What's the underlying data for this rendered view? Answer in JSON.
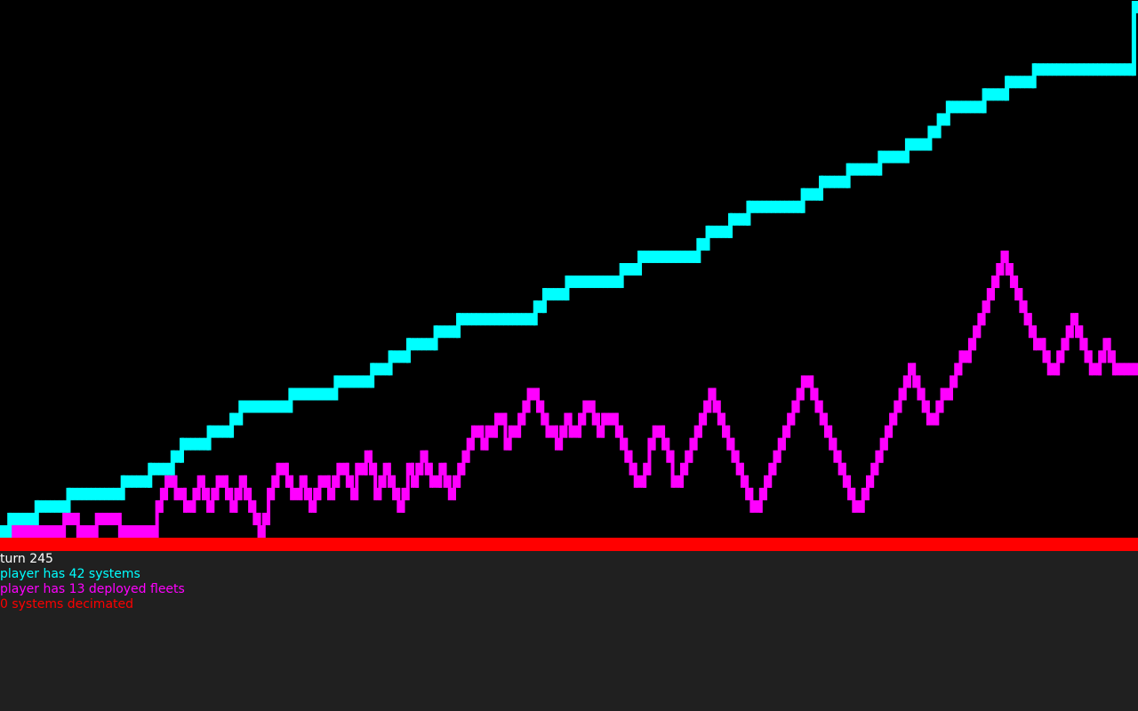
{
  "colors": {
    "background": "#000000",
    "panel": "#202020",
    "systems": "#00FFFF",
    "fleets": "#FF00FF",
    "decimated": "#FF0000",
    "text": "#FFFFFF"
  },
  "status": {
    "turn": "turn 245",
    "systems": "player has 42 systems",
    "fleets": "player has 13 deployed fleets",
    "decimated": "0 systems decimated"
  },
  "chart_data": {
    "type": "line",
    "x_range": [
      0,
      245
    ],
    "y_range": [
      0,
      42
    ],
    "series": [
      {
        "name": "systems",
        "color": "#00FFFF",
        "values": [
          0,
          0,
          1,
          1,
          1,
          1,
          1,
          1,
          2,
          2,
          2,
          2,
          2,
          2,
          2,
          3,
          3,
          3,
          3,
          3,
          3,
          3,
          3,
          3,
          3,
          3,
          3,
          4,
          4,
          4,
          4,
          4,
          4,
          5,
          5,
          5,
          5,
          5,
          6,
          6,
          7,
          7,
          7,
          7,
          7,
          7,
          8,
          8,
          8,
          8,
          8,
          9,
          9,
          10,
          10,
          10,
          10,
          10,
          10,
          10,
          10,
          10,
          10,
          10,
          11,
          11,
          11,
          11,
          11,
          11,
          11,
          11,
          11,
          11,
          12,
          12,
          12,
          12,
          12,
          12,
          12,
          12,
          13,
          13,
          13,
          13,
          14,
          14,
          14,
          14,
          15,
          15,
          15,
          15,
          15,
          15,
          16,
          16,
          16,
          16,
          16,
          17,
          17,
          17,
          17,
          17,
          17,
          17,
          17,
          17,
          17,
          17,
          17,
          17,
          17,
          17,
          17,
          17,
          18,
          18,
          19,
          19,
          19,
          19,
          19,
          20,
          20,
          20,
          20,
          20,
          20,
          20,
          20,
          20,
          20,
          20,
          20,
          21,
          21,
          21,
          21,
          22,
          22,
          22,
          22,
          22,
          22,
          22,
          22,
          22,
          22,
          22,
          22,
          22,
          23,
          23,
          24,
          24,
          24,
          24,
          24,
          25,
          25,
          25,
          25,
          26,
          26,
          26,
          26,
          26,
          26,
          26,
          26,
          26,
          26,
          26,
          26,
          27,
          27,
          27,
          27,
          28,
          28,
          28,
          28,
          28,
          28,
          29,
          29,
          29,
          29,
          29,
          29,
          29,
          30,
          30,
          30,
          30,
          30,
          30,
          31,
          31,
          31,
          31,
          31,
          32,
          32,
          33,
          33,
          34,
          34,
          34,
          34,
          34,
          34,
          34,
          34,
          35,
          35,
          35,
          35,
          35,
          36,
          36,
          36,
          36,
          36,
          36,
          37,
          37,
          37,
          37,
          37,
          37,
          37,
          37,
          37,
          37,
          37,
          37,
          37,
          37,
          37,
          37,
          37,
          37,
          37,
          37,
          37,
          37,
          42
        ]
      },
      {
        "name": "deployed fleets",
        "color": "#FF00FF",
        "values": [
          0,
          0,
          0,
          0,
          0,
          0,
          0,
          0,
          0,
          0,
          0,
          0,
          0,
          0,
          1,
          1,
          1,
          0,
          0,
          0,
          0,
          1,
          1,
          1,
          1,
          1,
          0,
          0,
          0,
          0,
          0,
          0,
          0,
          0,
          2,
          3,
          4,
          4,
          3,
          3,
          2,
          2,
          3,
          4,
          3,
          2,
          3,
          4,
          4,
          3,
          2,
          3,
          4,
          3,
          2,
          1,
          0,
          1,
          3,
          4,
          5,
          5,
          4,
          3,
          3,
          4,
          3,
          2,
          3,
          4,
          4,
          3,
          4,
          5,
          5,
          4,
          3,
          5,
          5,
          6,
          5,
          3,
          4,
          5,
          4,
          3,
          2,
          3,
          5,
          4,
          5,
          6,
          5,
          4,
          4,
          5,
          4,
          3,
          4,
          5,
          6,
          7,
          8,
          8,
          7,
          8,
          8,
          9,
          9,
          7,
          8,
          8,
          9,
          10,
          11,
          11,
          10,
          9,
          8,
          8,
          7,
          8,
          9,
          8,
          8,
          9,
          10,
          10,
          9,
          8,
          9,
          9,
          9,
          8,
          7,
          6,
          5,
          4,
          4,
          5,
          7,
          8,
          8,
          7,
          6,
          4,
          4,
          5,
          6,
          7,
          8,
          9,
          10,
          11,
          10,
          9,
          8,
          7,
          6,
          5,
          4,
          3,
          2,
          2,
          3,
          4,
          5,
          6,
          7,
          8,
          9,
          10,
          11,
          12,
          12,
          11,
          10,
          9,
          8,
          7,
          6,
          5,
          4,
          3,
          2,
          2,
          3,
          4,
          5,
          6,
          7,
          8,
          9,
          10,
          11,
          12,
          13,
          12,
          11,
          10,
          9,
          9,
          10,
          11,
          11,
          12,
          13,
          14,
          14,
          15,
          16,
          17,
          18,
          19,
          20,
          21,
          22,
          21,
          20,
          19,
          18,
          17,
          16,
          15,
          15,
          14,
          13,
          13,
          14,
          15,
          16,
          17,
          16,
          15,
          14,
          13,
          13,
          14,
          15,
          14,
          13,
          13,
          13,
          13,
          13
        ]
      }
    ]
  }
}
